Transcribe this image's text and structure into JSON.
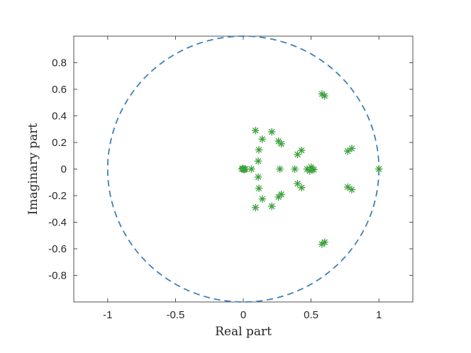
{
  "chart_data": {
    "type": "scatter",
    "title": "",
    "xlabel": "Real part",
    "ylabel": "Imaginary part",
    "xlim": [
      -1.25,
      1.25
    ],
    "ylim": [
      -1,
      1
    ],
    "xticks": [
      -1,
      -0.5,
      0,
      0.5,
      1
    ],
    "xtick_labels": [
      "-1",
      "-0.5",
      "0",
      "0.5",
      "1"
    ],
    "yticks": [
      -0.8,
      -0.6,
      -0.4,
      -0.2,
      0,
      0.2,
      0.4,
      0.6,
      0.8
    ],
    "ytick_labels": [
      "-0.8",
      "-0.6",
      "-0.4",
      "-0.2",
      "0",
      "0.2",
      "0.4",
      "0.6",
      "0.8"
    ],
    "grid": false,
    "legend": null,
    "unit_circle": {
      "center": [
        0,
        0
      ],
      "radius": 1,
      "style": "dashed",
      "color": "#3d7fb8"
    },
    "series": [
      {
        "marker": "asterisk",
        "color": "#3ca03c",
        "points": [
          [
            1.0,
            0.0
          ],
          [
            0.58,
            0.565
          ],
          [
            0.6,
            0.55
          ],
          [
            0.58,
            -0.565
          ],
          [
            0.6,
            -0.55
          ],
          [
            0.77,
            0.135
          ],
          [
            0.8,
            0.155
          ],
          [
            0.77,
            -0.135
          ],
          [
            0.8,
            -0.155
          ],
          [
            0.5,
            0.015
          ],
          [
            0.52,
            -0.005
          ],
          [
            0.51,
            0.0
          ],
          [
            0.47,
            0.0
          ],
          [
            0.49,
            -0.015
          ],
          [
            0.4,
            0.11
          ],
          [
            0.43,
            0.14
          ],
          [
            0.4,
            -0.11
          ],
          [
            0.43,
            -0.14
          ],
          [
            0.38,
            0.0
          ],
          [
            0.26,
            0.21
          ],
          [
            0.28,
            0.19
          ],
          [
            0.26,
            -0.21
          ],
          [
            0.28,
            -0.19
          ],
          [
            0.27,
            0.0
          ],
          [
            0.21,
            0.28
          ],
          [
            0.21,
            -0.28
          ],
          [
            0.14,
            0.225
          ],
          [
            0.14,
            -0.225
          ],
          [
            0.09,
            0.29
          ],
          [
            0.09,
            -0.29
          ],
          [
            0.115,
            0.145
          ],
          [
            0.115,
            -0.145
          ],
          [
            0.11,
            0.06
          ],
          [
            0.11,
            -0.06
          ],
          [
            0.06,
            0.0
          ],
          [
            -0.01,
            0.0
          ],
          [
            0.0,
            0.0
          ],
          [
            0.01,
            0.0
          ],
          [
            0.015,
            0.0
          ],
          [
            -0.005,
            0.005
          ],
          [
            0.005,
            -0.005
          ]
        ]
      }
    ]
  }
}
